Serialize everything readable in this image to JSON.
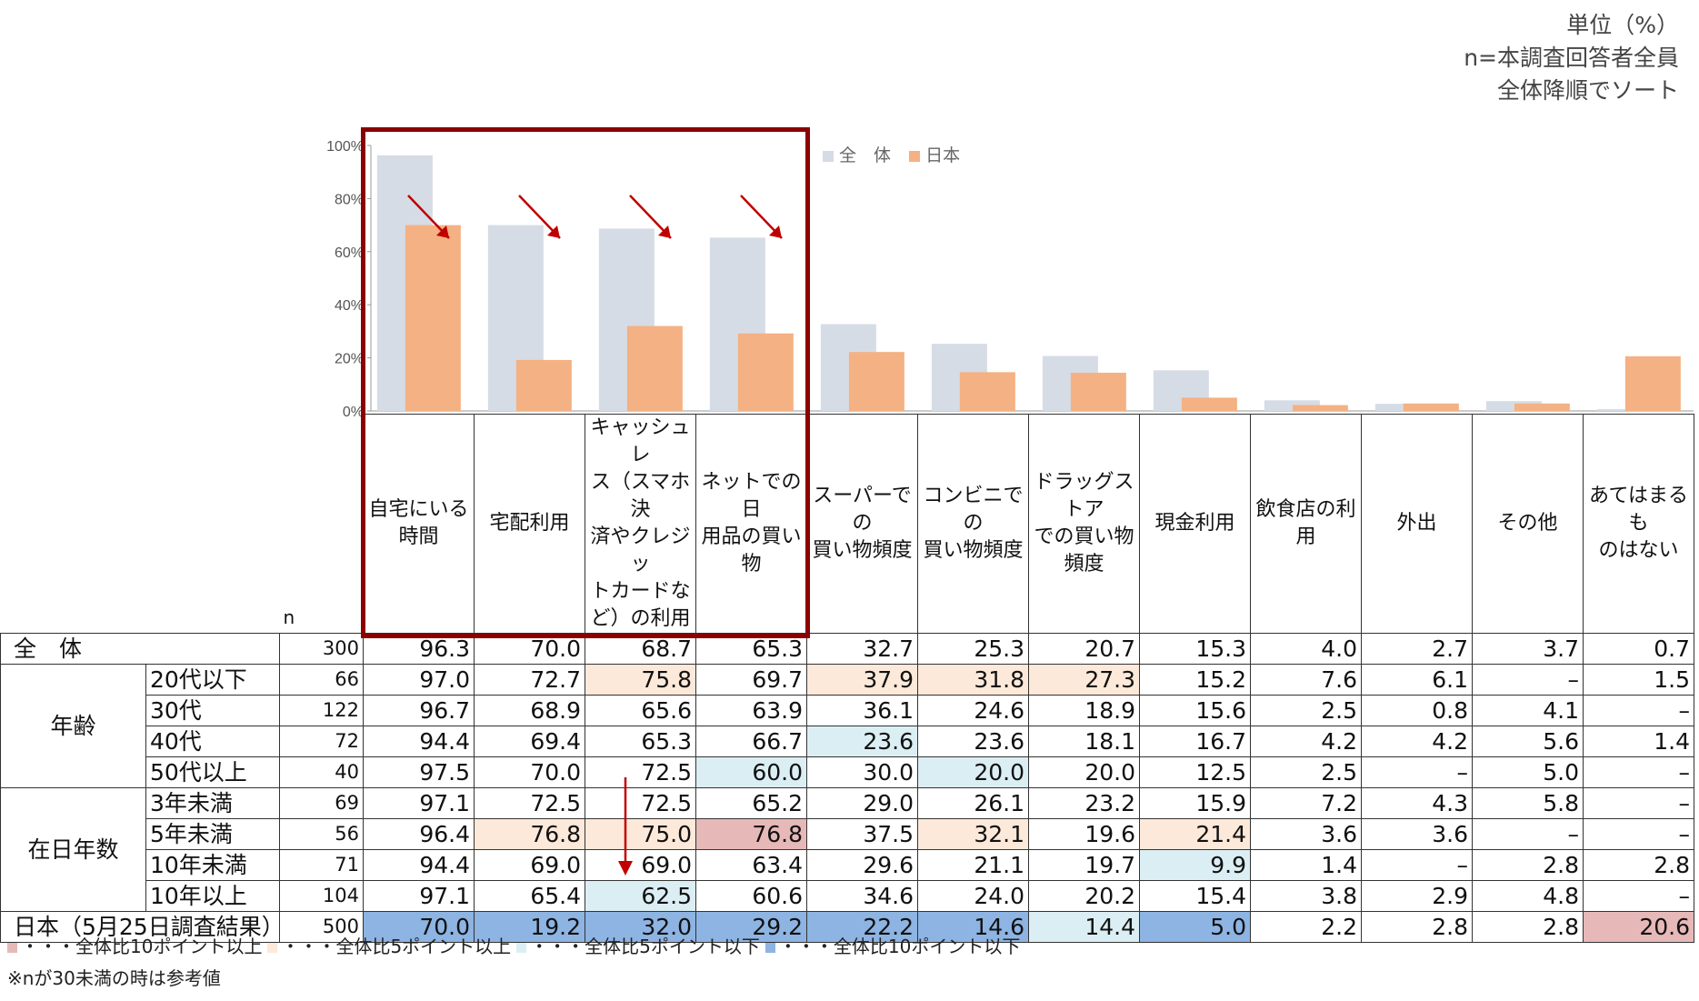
{
  "unit_note": [
    "単位（%）",
    "n=本調査回答者全員",
    "全体降順でソート"
  ],
  "chart_data": {
    "type": "bar",
    "categories": [
      "自宅にいる時間",
      "宅配利用",
      "キャッシュレス（スマホ決済やクレジットカードなど）の利用",
      "ネットでの日用品の買い物",
      "スーパーでの買い物頻度",
      "コンビニでの買い物頻度",
      "ドラッグストアでの買い物頻度",
      "現金利用",
      "飲食店の利用",
      "外出",
      "その他",
      "あてはまるものはない"
    ],
    "series": [
      {
        "name": "全　体",
        "values": [
          96.3,
          70.0,
          68.7,
          65.3,
          32.7,
          25.3,
          20.7,
          15.3,
          4.0,
          2.7,
          3.7,
          0.7
        ],
        "color": "#d6dce5"
      },
      {
        "name": "日本",
        "values": [
          70.0,
          19.2,
          32.0,
          29.2,
          22.2,
          14.6,
          14.4,
          5.0,
          2.2,
          2.8,
          2.8,
          20.6
        ],
        "color": "#f4b183"
      }
    ],
    "ylim": [
      0,
      100
    ],
    "yticks": [
      "0%",
      "20%",
      "40%",
      "60%",
      "80%",
      "100%"
    ],
    "grid": false,
    "legend": "top-right"
  },
  "table": {
    "header_labels": [
      "自宅にいる\n時間",
      "宅配利用",
      "キャッシュレ\nス（スマホ決\n済やクレジッ\nトカードな\nど）の利用",
      "ネットでの日\n用品の買い\n物",
      "スーパーでの\n買い物頻度",
      "コンビニでの\n買い物頻度",
      "ドラッグストア\nでの買い物\n頻度",
      "現金利用",
      "飲食店の利\n用",
      "外出",
      "その他",
      "あてはまるも\nのはない"
    ],
    "n_label": "n",
    "rows": [
      {
        "group": "全　体",
        "sub": "",
        "n": "300",
        "values": [
          "96.3",
          "70.0",
          "68.7",
          "65.3",
          "32.7",
          "25.3",
          "20.7",
          "15.3",
          "4.0",
          "2.7",
          "3.7",
          "0.7"
        ],
        "flags": [
          "",
          "",
          "",
          "",
          "",
          "",
          "",
          "",
          "",
          "",
          "",
          ""
        ]
      },
      {
        "group": "年齢",
        "sub": "20代以下",
        "n": "66",
        "values": [
          "97.0",
          "72.7",
          "75.8",
          "69.7",
          "37.9",
          "31.8",
          "27.3",
          "15.2",
          "7.6",
          "6.1",
          "–",
          "1.5"
        ],
        "flags": [
          "",
          "",
          "p5",
          "",
          "p5",
          "p5",
          "p5",
          "",
          "",
          "",
          "",
          ""
        ]
      },
      {
        "group": "年齢",
        "sub": "30代",
        "n": "122",
        "values": [
          "96.7",
          "68.9",
          "65.6",
          "63.9",
          "36.1",
          "24.6",
          "18.9",
          "15.6",
          "2.5",
          "0.8",
          "4.1",
          "–"
        ],
        "flags": [
          "",
          "",
          "",
          "",
          "",
          "",
          "",
          "",
          "",
          "",
          "",
          ""
        ]
      },
      {
        "group": "年齢",
        "sub": "40代",
        "n": "72",
        "values": [
          "94.4",
          "69.4",
          "65.3",
          "66.7",
          "23.6",
          "23.6",
          "18.1",
          "16.7",
          "4.2",
          "4.2",
          "5.6",
          "1.4"
        ],
        "flags": [
          "",
          "",
          "",
          "",
          "m5",
          "",
          "",
          "",
          "",
          "",
          "",
          ""
        ]
      },
      {
        "group": "年齢",
        "sub": "50代以上",
        "n": "40",
        "values": [
          "97.5",
          "70.0",
          "72.5",
          "60.0",
          "30.0",
          "20.0",
          "20.0",
          "12.5",
          "2.5",
          "–",
          "5.0",
          "–"
        ],
        "flags": [
          "",
          "",
          "",
          "m5",
          "",
          "m5",
          "",
          "",
          "",
          "",
          "",
          ""
        ]
      },
      {
        "group": "在日年数",
        "sub": "3年未満",
        "n": "69",
        "values": [
          "97.1",
          "72.5",
          "72.5",
          "65.2",
          "29.0",
          "26.1",
          "23.2",
          "15.9",
          "7.2",
          "4.3",
          "5.8",
          "–"
        ],
        "flags": [
          "",
          "",
          "",
          "",
          "",
          "",
          "",
          "",
          "",
          "",
          "",
          ""
        ]
      },
      {
        "group": "在日年数",
        "sub": "5年未満",
        "n": "56",
        "values": [
          "96.4",
          "76.8",
          "75.0",
          "76.8",
          "37.5",
          "32.1",
          "19.6",
          "21.4",
          "3.6",
          "3.6",
          "–",
          "–"
        ],
        "flags": [
          "",
          "p5",
          "p5",
          "p10",
          "",
          "p5",
          "",
          "p5",
          "",
          "",
          "",
          ""
        ]
      },
      {
        "group": "在日年数",
        "sub": "10年未満",
        "n": "71",
        "values": [
          "94.4",
          "69.0",
          "69.0",
          "63.4",
          "29.6",
          "21.1",
          "19.7",
          "9.9",
          "1.4",
          "–",
          "2.8",
          "2.8"
        ],
        "flags": [
          "",
          "",
          "",
          "",
          "",
          "",
          "",
          "m5",
          "",
          "",
          "",
          ""
        ]
      },
      {
        "group": "在日年数",
        "sub": "10年以上",
        "n": "104",
        "values": [
          "97.1",
          "65.4",
          "62.5",
          "60.6",
          "34.6",
          "24.0",
          "20.2",
          "15.4",
          "3.8",
          "2.9",
          "4.8",
          "–"
        ],
        "flags": [
          "",
          "",
          "m5",
          "",
          "",
          "",
          "",
          "",
          "",
          "",
          "",
          ""
        ]
      },
      {
        "group": "日本（5月25日調査結果）",
        "sub": "",
        "n": "500",
        "values": [
          "70.0",
          "19.2",
          "32.0",
          "29.2",
          "22.2",
          "14.6",
          "14.4",
          "5.0",
          "2.2",
          "2.8",
          "2.8",
          "20.6"
        ],
        "flags": [
          "m10",
          "m10",
          "m10",
          "m10",
          "m10",
          "m10",
          "m5",
          "m10",
          "",
          "",
          "",
          "p10"
        ]
      }
    ]
  },
  "legend_items": [
    {
      "color": "#e6b9b8",
      "label": "・・・全体比10ポイント以上"
    },
    {
      "color": "#fde9d9",
      "label": "・・・全体比5ポイント以上"
    },
    {
      "color": "#dbeef3",
      "label": "・・・全体比5ポイント以下"
    },
    {
      "color": "#8db4e2",
      "label": "・・・全体比10ポイント以下"
    }
  ],
  "note": "※nが30未満の時は参考値",
  "flag_colors": {
    "p10": "#e6b9b8",
    "p5": "#fde9d9",
    "m5": "#dbeef3",
    "m10": "#8db4e2"
  }
}
